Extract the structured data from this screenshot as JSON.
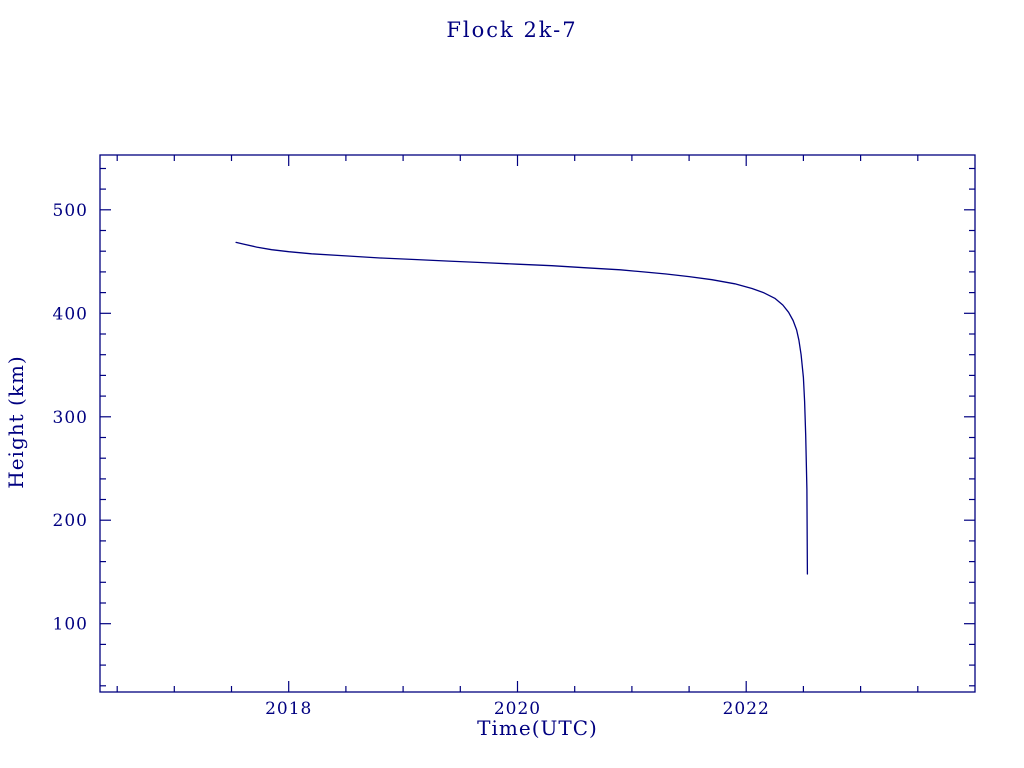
{
  "chart_data": {
    "type": "line",
    "title": "Flock 2k-7",
    "xlabel": "Time(UTC)",
    "ylabel": "Height (km)",
    "xlim": [
      2016.35,
      2024.0
    ],
    "ylim": [
      34,
      553
    ],
    "xtick_values": [
      2018,
      2020,
      2022
    ],
    "xtick_labels": [
      "2018",
      "2020",
      "2022"
    ],
    "ytick_values": [
      100,
      200,
      300,
      400,
      500
    ],
    "ytick_labels": [
      "100",
      "200",
      "300",
      "400",
      "500"
    ],
    "x_minor_step": 0.5,
    "y_minor_step": 20,
    "grid": false,
    "legend": "none",
    "line_color": "#000080",
    "background": "#ffffff",
    "series": [
      {
        "name": "Flock 2k-7 orbital height",
        "points": [
          [
            2017.54,
            468.5
          ],
          [
            2017.6,
            467.0
          ],
          [
            2017.72,
            464.0
          ],
          [
            2017.85,
            461.5
          ],
          [
            2018.0,
            459.5
          ],
          [
            2018.2,
            457.5
          ],
          [
            2018.5,
            455.5
          ],
          [
            2018.8,
            453.5
          ],
          [
            2019.1,
            452.0
          ],
          [
            2019.4,
            450.5
          ],
          [
            2019.7,
            449.0
          ],
          [
            2020.0,
            447.5
          ],
          [
            2020.3,
            446.0
          ],
          [
            2020.6,
            444.0
          ],
          [
            2020.9,
            442.0
          ],
          [
            2021.1,
            440.0
          ],
          [
            2021.3,
            438.0
          ],
          [
            2021.5,
            435.5
          ],
          [
            2021.7,
            432.5
          ],
          [
            2021.9,
            428.5
          ],
          [
            2022.05,
            424.0
          ],
          [
            2022.15,
            420.0
          ],
          [
            2022.25,
            414.5
          ],
          [
            2022.32,
            408.0
          ],
          [
            2022.37,
            401.0
          ],
          [
            2022.41,
            393.0
          ],
          [
            2022.44,
            384.0
          ],
          [
            2022.46,
            374.0
          ],
          [
            2022.48,
            360.0
          ],
          [
            2022.5,
            338.0
          ],
          [
            2022.51,
            315.0
          ],
          [
            2022.52,
            282.0
          ],
          [
            2022.53,
            230.0
          ],
          [
            2022.535,
            148.0
          ]
        ]
      }
    ]
  }
}
